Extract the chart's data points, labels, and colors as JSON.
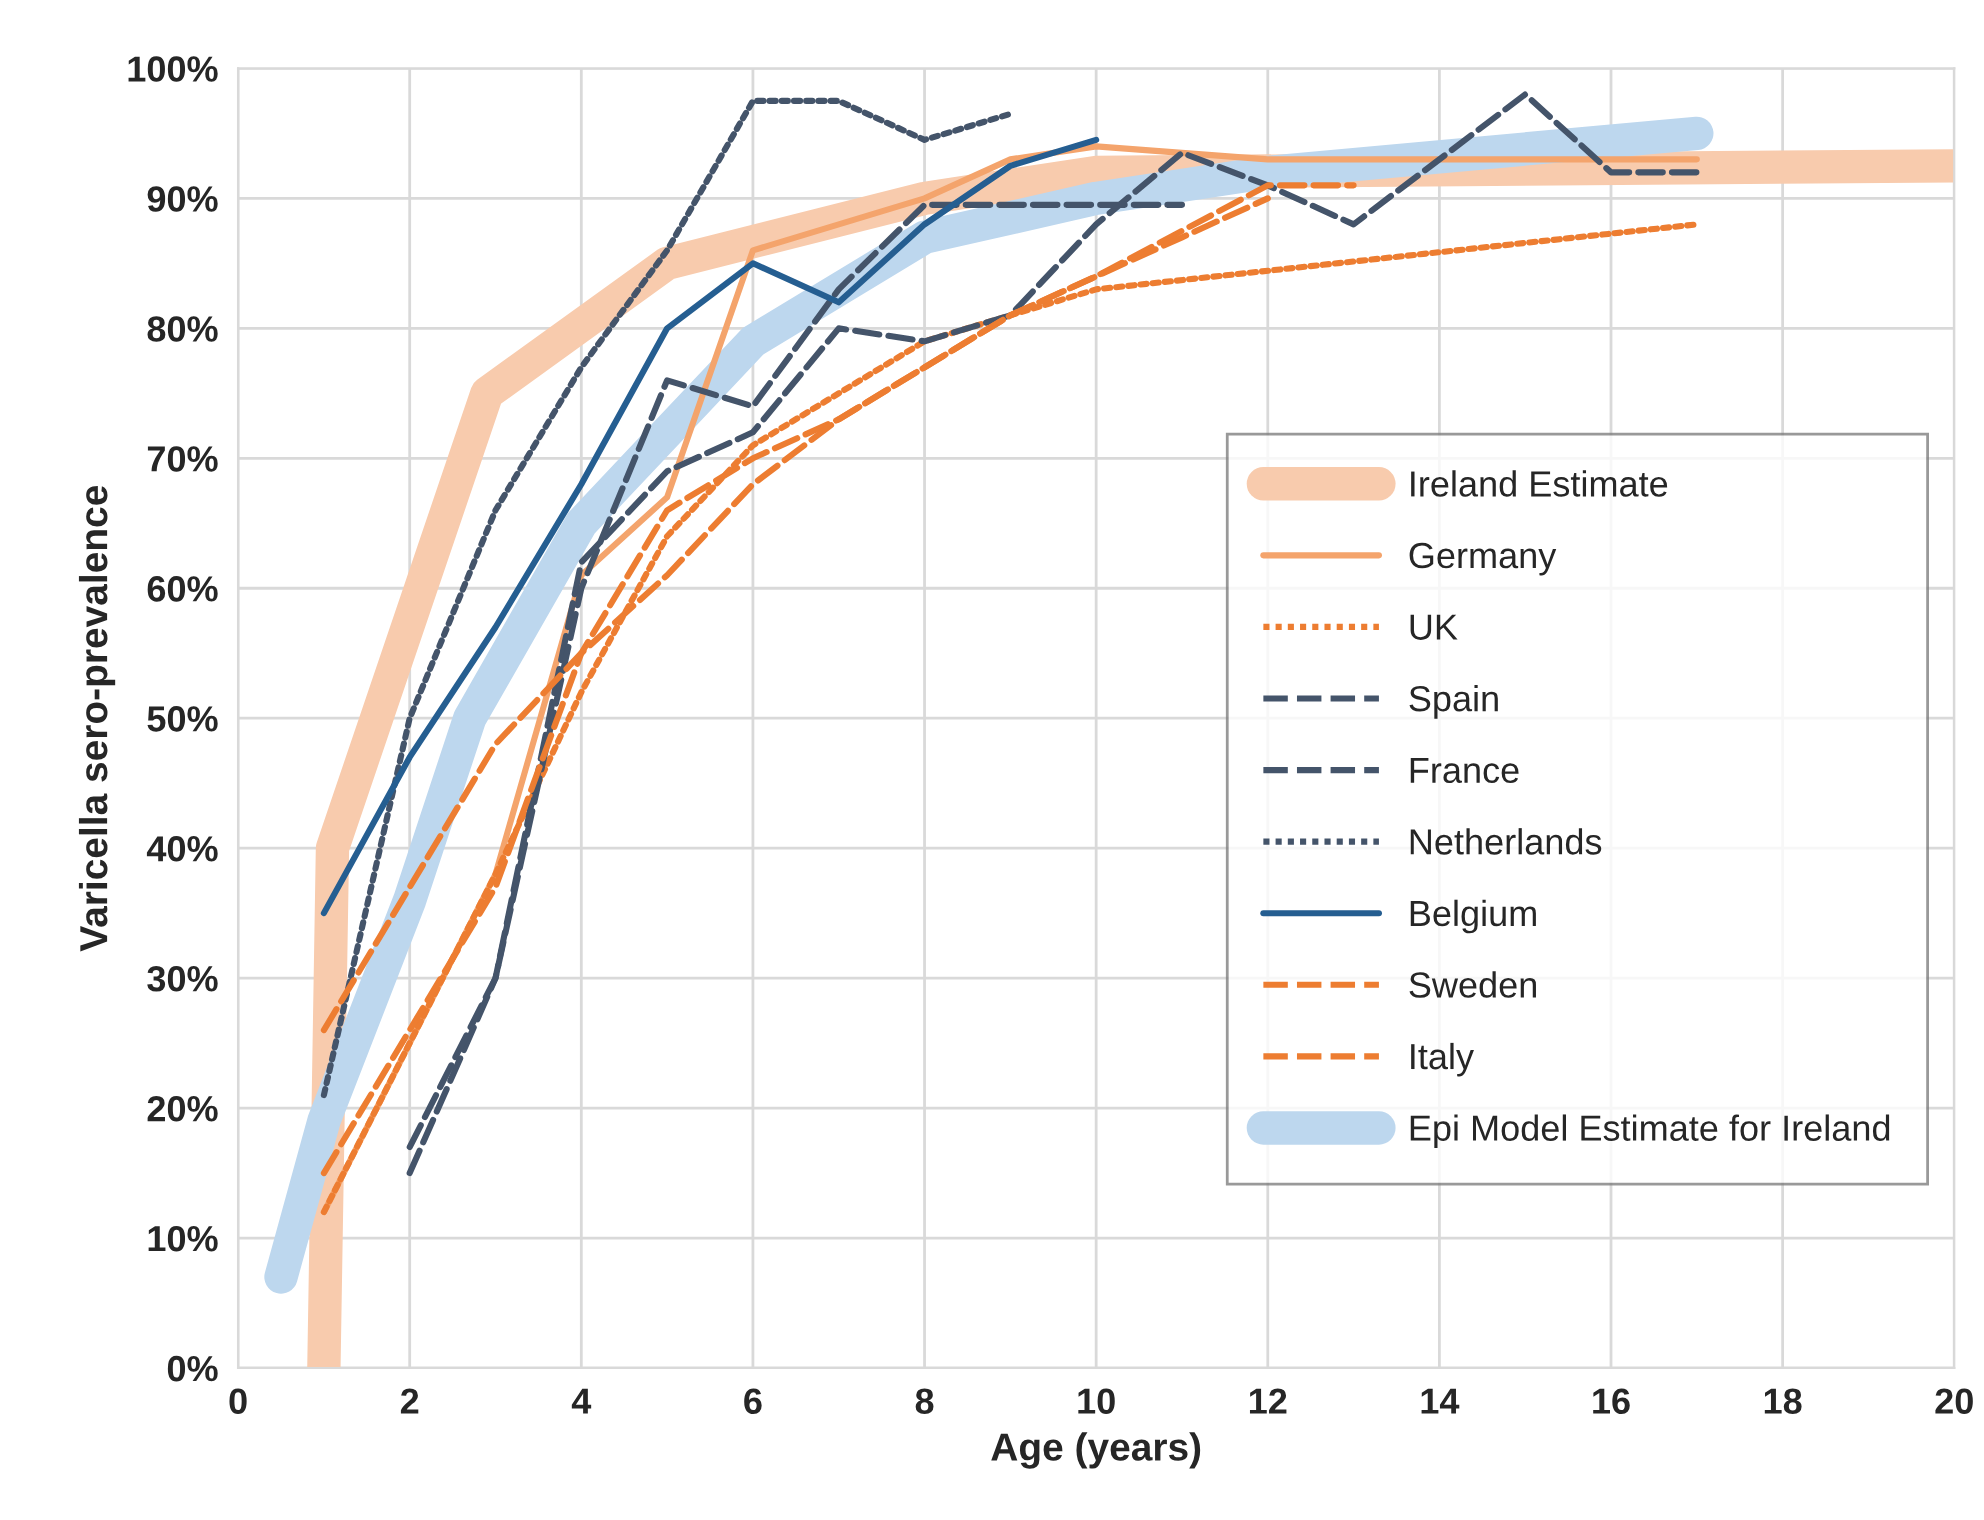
{
  "chart_data": {
    "type": "line",
    "xlabel": "Age (years)",
    "ylabel": "Varicella sero-prevalence",
    "xlim": [
      0,
      20
    ],
    "xticks": [
      0,
      2,
      4,
      6,
      8,
      10,
      12,
      14,
      16,
      18,
      20
    ],
    "ylim": [
      0,
      100
    ],
    "yticks": [
      {
        "value": 0,
        "label": "0%"
      },
      {
        "value": 10,
        "label": "10%"
      },
      {
        "value": 20,
        "label": "20%"
      },
      {
        "value": 30,
        "label": "30%"
      },
      {
        "value": 40,
        "label": "40%"
      },
      {
        "value": 50,
        "label": "50%"
      },
      {
        "value": 60,
        "label": "60%"
      },
      {
        "value": 70,
        "label": "70%"
      },
      {
        "value": 80,
        "label": "80%"
      },
      {
        "value": 90,
        "label": "90%"
      },
      {
        "value": 100,
        "label": "100%"
      }
    ],
    "grid": true,
    "legend": "right",
    "marker": "none",
    "series": [
      {
        "name": "Ireland Estimate",
        "color": "#f8cbad",
        "line_style": "solid",
        "x": [
          1,
          1.1,
          2.9,
          5,
          8,
          10,
          20
        ],
        "values": [
          0,
          40,
          75,
          85,
          90,
          92,
          92.5
        ]
      },
      {
        "name": "Germany",
        "color": "#f4a46c",
        "line_style": "solid",
        "x": [
          1,
          2,
          3,
          4,
          5,
          6,
          8,
          9,
          10,
          12,
          17
        ],
        "values": [
          12,
          25,
          38,
          61,
          67,
          86,
          90,
          93,
          94,
          93,
          93
        ]
      },
      {
        "name": "UK",
        "color": "#ed7d31",
        "line_style": "dotted",
        "x": [
          1,
          2,
          3,
          4,
          5,
          6,
          8,
          10,
          17
        ],
        "values": [
          12,
          25,
          38,
          52,
          64,
          71,
          79,
          83,
          88
        ]
      },
      {
        "name": "Spain",
        "color": "#44546a",
        "line_style": "dashed",
        "x": [
          2,
          3,
          4,
          5,
          6,
          7,
          8,
          9,
          10,
          11,
          12,
          13,
          15,
          16,
          17
        ],
        "values": [
          15,
          30,
          62,
          69,
          72,
          80,
          79,
          81,
          88,
          93.5,
          91,
          88,
          98,
          92,
          92
        ]
      },
      {
        "name": "France",
        "color": "#44546a",
        "line_style": "dashed",
        "x": [
          2,
          3,
          4,
          5,
          6,
          7,
          8,
          9,
          10,
          11
        ],
        "values": [
          17,
          30,
          60,
          76,
          74,
          83,
          89.5,
          89.5,
          89.5,
          89.5
        ]
      },
      {
        "name": "Netherlands",
        "color": "#44546a",
        "line_style": "dotted",
        "x": [
          1,
          2,
          3,
          4,
          5,
          6,
          7,
          8,
          9
        ],
        "values": [
          21,
          50,
          66,
          77,
          86,
          97.5,
          97.5,
          94.5,
          96.5
        ]
      },
      {
        "name": "Belgium",
        "color": "#255e91",
        "line_style": "solid",
        "x": [
          1,
          2,
          3,
          4,
          5,
          6,
          7,
          8,
          9,
          10
        ],
        "values": [
          35,
          47,
          57,
          68,
          80,
          85,
          82,
          88,
          92.5,
          94.5
        ]
      },
      {
        "name": "Sweden",
        "color": "#ed7d31",
        "line_style": "dashed",
        "x": [
          1,
          2,
          3,
          4,
          5,
          6,
          7,
          8,
          9,
          10,
          12,
          13
        ],
        "values": [
          15,
          26,
          37,
          55,
          66,
          70,
          73,
          77,
          81,
          84,
          91,
          91
        ]
      },
      {
        "name": "Italy",
        "color": "#ed7d31",
        "line_style": "dashed",
        "x": [
          1,
          2,
          3,
          4,
          5,
          6,
          7,
          8,
          9,
          10,
          11,
          12
        ],
        "values": [
          26,
          37,
          48,
          55,
          61,
          68,
          73,
          77,
          81,
          84,
          87,
          90
        ]
      },
      {
        "name": "Epi Model Estimate for Ireland",
        "color": "#bdd7ee",
        "line_style": "solid",
        "x": [
          0.5,
          1,
          2,
          2.7,
          4,
          5,
          6,
          8,
          10,
          12,
          17
        ],
        "values": [
          7,
          19,
          36,
          50,
          65,
          72,
          79,
          87,
          90,
          92,
          95
        ]
      }
    ]
  }
}
